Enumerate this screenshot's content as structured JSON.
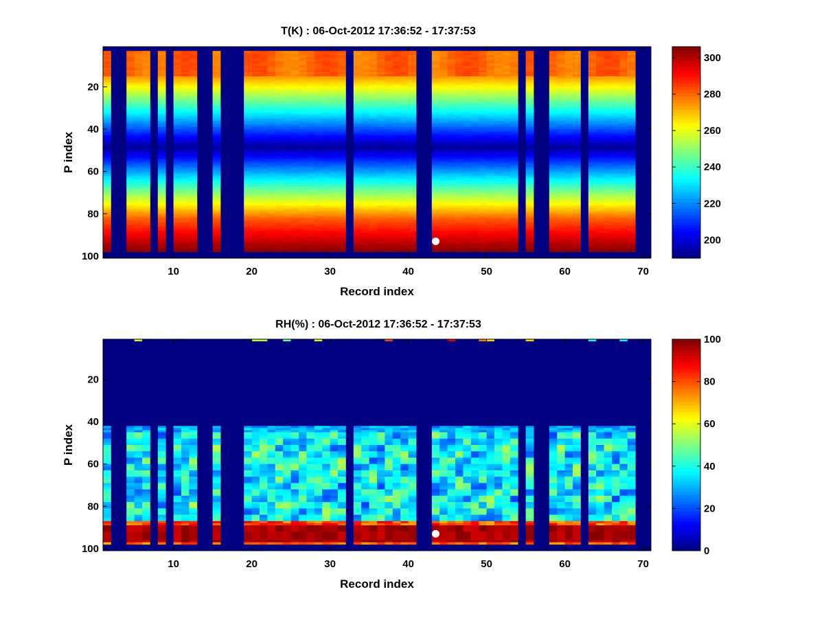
{
  "chart_data": [
    {
      "type": "heatmap",
      "title": "T(K) : 06-Oct-2012 17:36:52 - 17:37:53",
      "xlabel": "Record index",
      "ylabel": "P index",
      "xlim": [
        1,
        71
      ],
      "ylim": [
        1,
        101
      ],
      "y_reversed": true,
      "xticks": [
        10,
        20,
        30,
        40,
        50,
        60,
        70
      ],
      "yticks": [
        20,
        40,
        60,
        80,
        100
      ],
      "colormap": "jet",
      "clim": [
        190,
        306
      ],
      "colorbar_ticks": [
        200,
        220,
        240,
        260,
        280,
        300
      ],
      "records": 70,
      "levels": 100,
      "data_rows_end": 97,
      "profile": "temperature",
      "missing_records": [
        2,
        3,
        7,
        9,
        13,
        14,
        16,
        17,
        18,
        32,
        41,
        42,
        54,
        56,
        57,
        62,
        69,
        70
      ],
      "marker": {
        "record": 43,
        "level": 93,
        "color": "#ffffff"
      }
    },
    {
      "type": "heatmap",
      "title": "RH(%) : 06-Oct-2012 17:36:52 - 17:37:53",
      "xlabel": "Record index",
      "ylabel": "P index",
      "xlim": [
        1,
        71
      ],
      "ylim": [
        1,
        101
      ],
      "y_reversed": true,
      "xticks": [
        10,
        20,
        30,
        40,
        50,
        60,
        70
      ],
      "yticks": [
        20,
        40,
        60,
        80,
        100
      ],
      "colormap": "jet",
      "clim": [
        0,
        100
      ],
      "colorbar_ticks": [
        0,
        20,
        40,
        60,
        80,
        100
      ],
      "records": 70,
      "levels": 100,
      "data_rows_end": 97,
      "profile": "humidity",
      "missing_records": [
        2,
        3,
        7,
        9,
        13,
        14,
        16,
        17,
        18,
        32,
        41,
        42,
        54,
        56,
        57,
        62,
        69,
        70
      ],
      "marker": {
        "record": 43,
        "level": 93,
        "color": "#ffffff"
      }
    }
  ]
}
